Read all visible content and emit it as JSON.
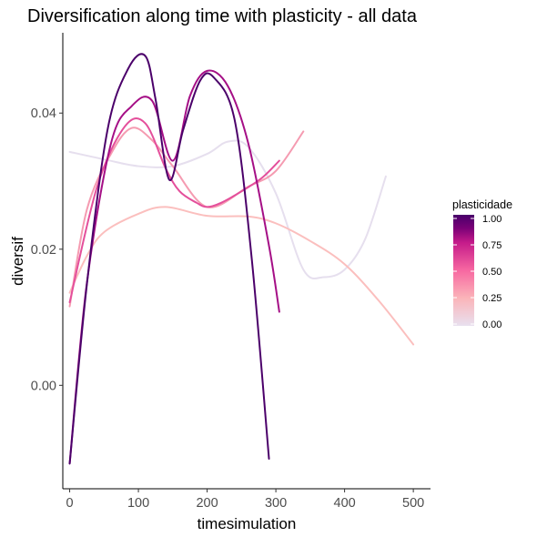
{
  "chart_data": {
    "type": "line",
    "title": "Diversification along time with plasticity - all data",
    "xlabel": "timesimulation",
    "ylabel": "diversif",
    "xlim": [
      -10,
      525
    ],
    "ylim": [
      -0.0152,
      0.0518
    ],
    "xticks": [
      0,
      100,
      200,
      300,
      400,
      500
    ],
    "yticks": [
      0.0,
      0.02,
      0.04
    ],
    "ytick_labels": [
      "0.00",
      "0.02",
      "0.04"
    ],
    "grid": false,
    "legend": {
      "title": "plasticidade",
      "placement": "right",
      "type": "colorbar",
      "range": [
        0,
        1
      ],
      "ticks": [
        1.0,
        0.75,
        0.5,
        0.25,
        0.0
      ],
      "tick_labels": [
        "1.00",
        "0.75",
        "0.50",
        "0.25",
        "0.00"
      ],
      "colors": [
        "#e8e0ef",
        "#fbb4b9",
        "#f768a1",
        "#c51b8a",
        "#7a0177",
        "#49006a"
      ]
    },
    "series": [
      {
        "plasticity": 0.05,
        "color": "#e6dfee",
        "x": [
          0,
          50,
          100,
          150,
          200,
          230,
          260,
          300,
          340,
          370,
          400,
          430,
          460
        ],
        "y": [
          0.0343,
          0.0332,
          0.0322,
          0.0322,
          0.034,
          0.0358,
          0.035,
          0.0282,
          0.017,
          0.0159,
          0.017,
          0.0215,
          0.0307
        ]
      },
      {
        "plasticity": 0.22,
        "color": "#fbbfbe",
        "x": [
          0,
          25,
          50,
          100,
          140,
          200,
          260,
          300,
          350,
          400,
          450,
          500
        ],
        "y": [
          0.0136,
          0.019,
          0.0225,
          0.0252,
          0.0262,
          0.0249,
          0.0248,
          0.0238,
          0.0212,
          0.0178,
          0.0124,
          0.006
        ]
      },
      {
        "plasticity": 0.4,
        "color": "#f59bb1",
        "x": [
          0,
          25,
          60,
          90,
          120,
          150,
          200,
          260,
          300,
          340
        ],
        "y": [
          0.0116,
          0.0258,
          0.034,
          0.0378,
          0.036,
          0.0322,
          0.0262,
          0.0292,
          0.0315,
          0.0373
        ]
      },
      {
        "plasticity": 0.6,
        "color": "#e44f9b",
        "x": [
          0,
          40,
          80,
          110,
          140,
          160,
          185,
          200,
          220,
          250,
          280,
          305
        ],
        "y": [
          0.0122,
          0.0292,
          0.038,
          0.0385,
          0.0318,
          0.0285,
          0.0268,
          0.0262,
          0.0268,
          0.0285,
          0.0305,
          0.033
        ]
      },
      {
        "plasticity": 0.8,
        "color": "#a50f86",
        "x": [
          0,
          25,
          60,
          90,
          120,
          150,
          175,
          200,
          230,
          260,
          290,
          305
        ],
        "y": [
          -0.0115,
          0.015,
          0.0355,
          0.041,
          0.0418,
          0.033,
          0.0425,
          0.0462,
          0.044,
          0.0355,
          0.0205,
          0.0108
        ]
      },
      {
        "plasticity": 1.0,
        "color": "#4b006a",
        "x": [
          0,
          25,
          55,
          85,
          110,
          125,
          145,
          165,
          190,
          210,
          240,
          265,
          290
        ],
        "y": [
          -0.0115,
          0.0148,
          0.0375,
          0.0465,
          0.0484,
          0.042,
          0.0302,
          0.0375,
          0.0448,
          0.0452,
          0.039,
          0.0185,
          -0.0108
        ]
      }
    ]
  }
}
